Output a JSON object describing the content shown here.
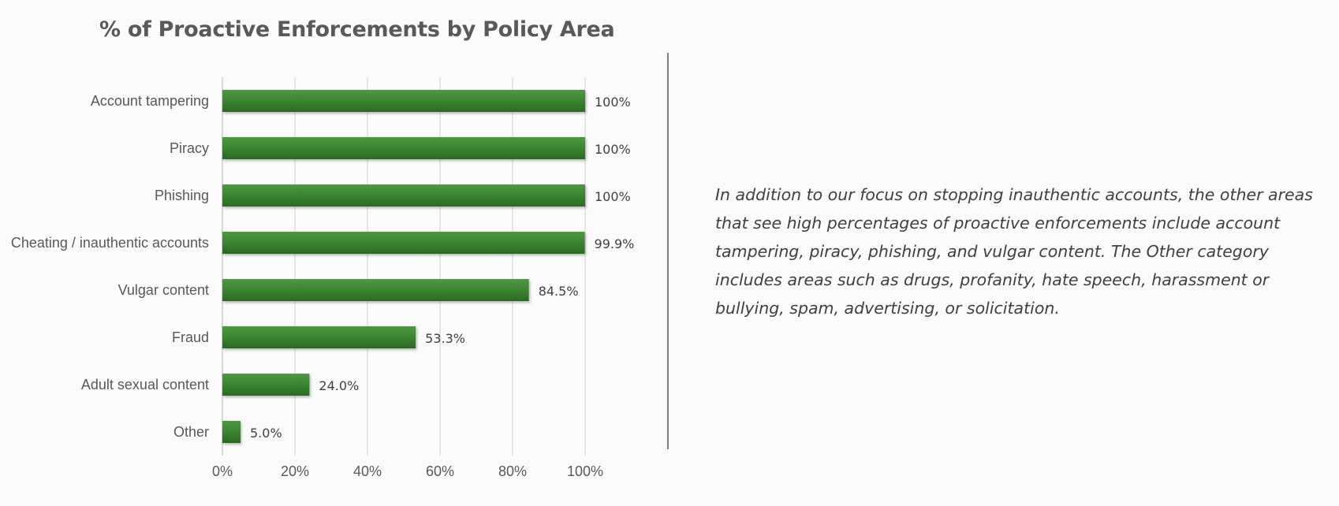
{
  "chart_data": {
    "type": "bar",
    "orientation": "horizontal",
    "title": "% of Proactive Enforcements by Policy Area",
    "categories": [
      "Account tampering",
      "Piracy",
      "Phishing",
      "Cheating / inauthentic accounts",
      "Vulgar content",
      "Fraud",
      "Adult sexual content",
      "Other"
    ],
    "values": [
      100,
      100,
      100,
      99.9,
      84.5,
      53.3,
      24.0,
      5.0
    ],
    "value_labels": [
      "100%",
      "100%",
      "100%",
      "99.9%",
      "84.5%",
      "53.3%",
      "24.0%",
      "5.0%"
    ],
    "x_ticks": [
      "0%",
      "20%",
      "40%",
      "60%",
      "80%",
      "100%"
    ],
    "xlim": [
      0,
      100
    ],
    "xlabel": "",
    "ylabel": "",
    "grid": "vertical",
    "legend": "none",
    "bar_color": "#3a8130"
  },
  "description": "In addition to our focus on stopping inauthentic accounts, the other areas that see high percentages of proactive enforcements include account tampering, piracy, phishing, and vulgar content. The Other category includes areas such as drugs, profanity, hate speech, harassment or bullying, spam, advertising, or solicitation."
}
